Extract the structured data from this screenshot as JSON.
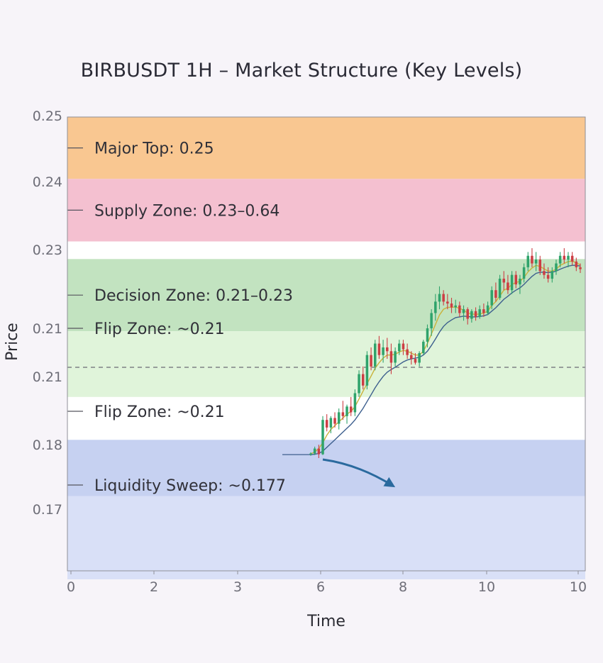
{
  "chart_data": {
    "type": "candlestick",
    "title": "BIRBUSDT 1H – Market Structure (Key Levels)",
    "xlabel": "Time",
    "ylabel": "Price",
    "x_tick_labels": [
      "0",
      "2",
      "3",
      "6",
      "8",
      "10",
      "10"
    ],
    "y_tick_labels": [
      "0.25",
      "0.24",
      "0.23",
      "0.21",
      "0.21",
      "0.18",
      "0.17"
    ],
    "grid": false,
    "zones": [
      {
        "label": "Major Top: 0.25",
        "color": "#f9c48b",
        "top_label": 0,
        "bottom_label": 0.96
      },
      {
        "label": "Supply Zone: 0.23–0.64",
        "color": "#f3bdcd",
        "top_label": 0.96,
        "bottom_label": 1.88
      },
      {
        "label": "Decision Zone: 0.21–0.23",
        "color": "#bfe2bd",
        "top_label": 2.12,
        "bottom_label": 3.06
      },
      {
        "label": "Flip Zone: ~0.21",
        "color": "#def3d8",
        "top_label": 3.06,
        "bottom_label": 4.3
      },
      {
        "label": "Flip Zone: ~0.21",
        "color": "#c3cff0",
        "top_label": 4.93,
        "bottom_label": 5.8
      },
      {
        "label": "Liquidity Sweep: ~0.177",
        "color": "#d7def7",
        "top_label": 5.8,
        "bottom_label": 7.1
      }
    ],
    "dashed_level_label_index": 4,
    "candles_ohlc": [
      [
        0.178,
        0.1785,
        0.1776,
        0.1782
      ],
      [
        0.1782,
        0.18,
        0.1778,
        0.1795
      ],
      [
        0.1795,
        0.1805,
        0.177,
        0.178
      ],
      [
        0.178,
        0.188,
        0.1778,
        0.187
      ],
      [
        0.187,
        0.1885,
        0.184,
        0.185
      ],
      [
        0.185,
        0.188,
        0.1835,
        0.1875
      ],
      [
        0.1875,
        0.189,
        0.185,
        0.186
      ],
      [
        0.186,
        0.19,
        0.1845,
        0.189
      ],
      [
        0.189,
        0.192,
        0.187,
        0.188
      ],
      [
        0.188,
        0.191,
        0.186,
        0.1905
      ],
      [
        0.1905,
        0.193,
        0.188,
        0.189
      ],
      [
        0.189,
        0.195,
        0.188,
        0.194
      ],
      [
        0.194,
        0.2,
        0.193,
        0.199
      ],
      [
        0.199,
        0.201,
        0.195,
        0.196
      ],
      [
        0.196,
        0.205,
        0.195,
        0.204
      ],
      [
        0.204,
        0.206,
        0.2,
        0.201
      ],
      [
        0.201,
        0.208,
        0.2,
        0.207
      ],
      [
        0.207,
        0.209,
        0.203,
        0.204
      ],
      [
        0.204,
        0.208,
        0.202,
        0.206
      ],
      [
        0.206,
        0.2085,
        0.203,
        0.205
      ],
      [
        0.205,
        0.207,
        0.199,
        0.202
      ],
      [
        0.202,
        0.206,
        0.201,
        0.205
      ],
      [
        0.205,
        0.208,
        0.204,
        0.207
      ],
      [
        0.207,
        0.208,
        0.204,
        0.2055
      ],
      [
        0.2055,
        0.207,
        0.203,
        0.204
      ],
      [
        0.204,
        0.205,
        0.2015,
        0.203
      ],
      [
        0.203,
        0.2045,
        0.2015,
        0.202
      ],
      [
        0.202,
        0.205,
        0.201,
        0.2045
      ],
      [
        0.2045,
        0.208,
        0.204,
        0.2075
      ],
      [
        0.2075,
        0.212,
        0.206,
        0.211
      ],
      [
        0.211,
        0.216,
        0.209,
        0.215
      ],
      [
        0.215,
        0.22,
        0.213,
        0.218
      ],
      [
        0.218,
        0.222,
        0.216,
        0.22
      ],
      [
        0.22,
        0.221,
        0.217,
        0.218
      ],
      [
        0.218,
        0.22,
        0.216,
        0.2175
      ],
      [
        0.2175,
        0.219,
        0.215,
        0.2165
      ],
      [
        0.2165,
        0.2185,
        0.215,
        0.217
      ],
      [
        0.217,
        0.218,
        0.214,
        0.215
      ],
      [
        0.215,
        0.217,
        0.213,
        0.216
      ],
      [
        0.216,
        0.2165,
        0.212,
        0.2135
      ],
      [
        0.2135,
        0.216,
        0.2125,
        0.2155
      ],
      [
        0.2155,
        0.2165,
        0.213,
        0.214
      ],
      [
        0.214,
        0.217,
        0.2135,
        0.216
      ],
      [
        0.216,
        0.2175,
        0.214,
        0.215
      ],
      [
        0.215,
        0.218,
        0.2145,
        0.217
      ],
      [
        0.217,
        0.222,
        0.216,
        0.221
      ],
      [
        0.221,
        0.223,
        0.218,
        0.219
      ],
      [
        0.219,
        0.225,
        0.2185,
        0.224
      ],
      [
        0.224,
        0.226,
        0.221,
        0.223
      ],
      [
        0.223,
        0.225,
        0.22,
        0.221
      ],
      [
        0.221,
        0.226,
        0.22,
        0.225
      ],
      [
        0.225,
        0.226,
        0.2215,
        0.2225
      ],
      [
        0.2225,
        0.225,
        0.22,
        0.224
      ],
      [
        0.224,
        0.228,
        0.223,
        0.227
      ],
      [
        0.227,
        0.231,
        0.226,
        0.23
      ],
      [
        0.23,
        0.232,
        0.227,
        0.228
      ],
      [
        0.228,
        0.231,
        0.226,
        0.229
      ],
      [
        0.229,
        0.23,
        0.225,
        0.226
      ],
      [
        0.226,
        0.228,
        0.224,
        0.225
      ],
      [
        0.225,
        0.227,
        0.223,
        0.224
      ],
      [
        0.224,
        0.227,
        0.223,
        0.226
      ],
      [
        0.226,
        0.229,
        0.225,
        0.228
      ],
      [
        0.228,
        0.231,
        0.227,
        0.23
      ],
      [
        0.23,
        0.232,
        0.228,
        0.229
      ],
      [
        0.229,
        0.231,
        0.227,
        0.23
      ],
      [
        0.23,
        0.231,
        0.2275,
        0.2285
      ],
      [
        0.2285,
        0.2295,
        0.226,
        0.227
      ],
      [
        0.227,
        0.228,
        0.2255,
        0.2265
      ]
    ],
    "ema_fast": [
      0.1781,
      0.1786,
      0.1795,
      0.181,
      0.183,
      0.1845,
      0.1855,
      0.1865,
      0.1875,
      0.1885,
      0.1892,
      0.1905,
      0.1925,
      0.1945,
      0.1965,
      0.1985,
      0.2005,
      0.202,
      0.2032,
      0.204,
      0.204,
      0.2042,
      0.2048,
      0.2052,
      0.205,
      0.2045,
      0.204,
      0.204,
      0.205,
      0.207,
      0.2095,
      0.212,
      0.2145,
      0.216,
      0.2165,
      0.2165,
      0.2166,
      0.2162,
      0.2158,
      0.215,
      0.2148,
      0.2146,
      0.2148,
      0.215,
      0.2155,
      0.217,
      0.218,
      0.2195,
      0.221,
      0.2215,
      0.2225,
      0.223,
      0.2233,
      0.2243,
      0.2258,
      0.2268,
      0.2275,
      0.2272,
      0.2266,
      0.226,
      0.226,
      0.2265,
      0.2275,
      0.228,
      0.2285,
      0.2286,
      0.2282,
      0.2276
    ],
    "ema_slow": [
      0.1779,
      0.178,
      0.1782,
      0.1788,
      0.1798,
      0.1808,
      0.1818,
      0.1828,
      0.1838,
      0.1848,
      0.1858,
      0.187,
      0.1885,
      0.19,
      0.1918,
      0.1936,
      0.1954,
      0.197,
      0.1984,
      0.1995,
      0.2002,
      0.2008,
      0.2015,
      0.2022,
      0.2027,
      0.203,
      0.2032,
      0.2034,
      0.204,
      0.205,
      0.2065,
      0.2082,
      0.21,
      0.2115,
      0.2125,
      0.2132,
      0.2138,
      0.214,
      0.2142,
      0.2141,
      0.214,
      0.214,
      0.2141,
      0.2143,
      0.2146,
      0.2155,
      0.2164,
      0.2175,
      0.2186,
      0.2194,
      0.2203,
      0.221,
      0.2216,
      0.2225,
      0.2236,
      0.2246,
      0.2254,
      0.2257,
      0.2257,
      0.2256,
      0.2257,
      0.226,
      0.2265,
      0.2269,
      0.2273,
      0.2275,
      0.2275,
      0.2273
    ],
    "colors": {
      "up": "#2fa36b",
      "down": "#cc3e44",
      "ema_fast": "#c9b23a",
      "ema_slow": "#3d5f8e",
      "arrow": "#2a6a9e"
    }
  }
}
